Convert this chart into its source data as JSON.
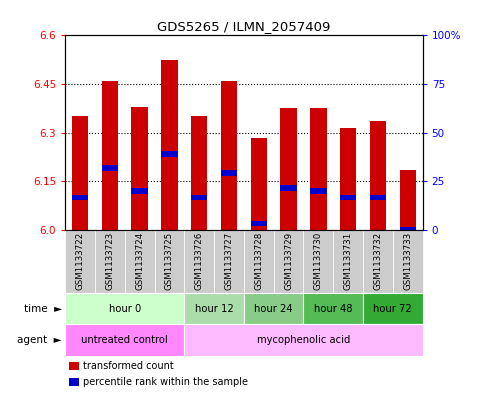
{
  "title": "GDS5265 / ILMN_2057409",
  "samples": [
    "GSM1133722",
    "GSM1133723",
    "GSM1133724",
    "GSM1133725",
    "GSM1133726",
    "GSM1133727",
    "GSM1133728",
    "GSM1133729",
    "GSM1133730",
    "GSM1133731",
    "GSM1133732",
    "GSM1133733"
  ],
  "transformed_count": [
    6.35,
    6.46,
    6.38,
    6.525,
    6.35,
    6.46,
    6.285,
    6.375,
    6.375,
    6.315,
    6.335,
    6.185
  ],
  "percentile_rank": [
    6.1,
    6.19,
    6.12,
    6.235,
    6.1,
    6.175,
    6.02,
    6.13,
    6.12,
    6.1,
    6.1,
    6.0
  ],
  "ylim": [
    6.0,
    6.6
  ],
  "yticks_left": [
    6.0,
    6.15,
    6.3,
    6.45,
    6.6
  ],
  "yticks_right_vals": [
    0,
    25,
    50,
    75,
    100
  ],
  "yticks_right_labels": [
    "0",
    "25",
    "50",
    "75",
    "100%"
  ],
  "bar_color": "#cc0000",
  "pct_color": "#0000cc",
  "bar_width": 0.55,
  "time_groups": [
    {
      "label": "hour 0",
      "start": 0,
      "end": 4,
      "color": "#ccffcc"
    },
    {
      "label": "hour 12",
      "start": 4,
      "end": 6,
      "color": "#aaddaa"
    },
    {
      "label": "hour 24",
      "start": 6,
      "end": 8,
      "color": "#88cc88"
    },
    {
      "label": "hour 48",
      "start": 8,
      "end": 10,
      "color": "#55bb55"
    },
    {
      "label": "hour 72",
      "start": 10,
      "end": 12,
      "color": "#33aa33"
    }
  ],
  "agent_groups": [
    {
      "label": "untreated control",
      "start": 0,
      "end": 4,
      "color": "#ff88ff"
    },
    {
      "label": "mycophenolic acid",
      "start": 4,
      "end": 12,
      "color": "#ffbbff"
    }
  ],
  "sample_bg_color": "#cccccc",
  "grid_yticks": [
    6.15,
    6.3,
    6.45
  ],
  "legend_items": [
    {
      "color": "#cc0000",
      "label": "transformed count"
    },
    {
      "color": "#0000cc",
      "label": "percentile rank within the sample"
    }
  ]
}
